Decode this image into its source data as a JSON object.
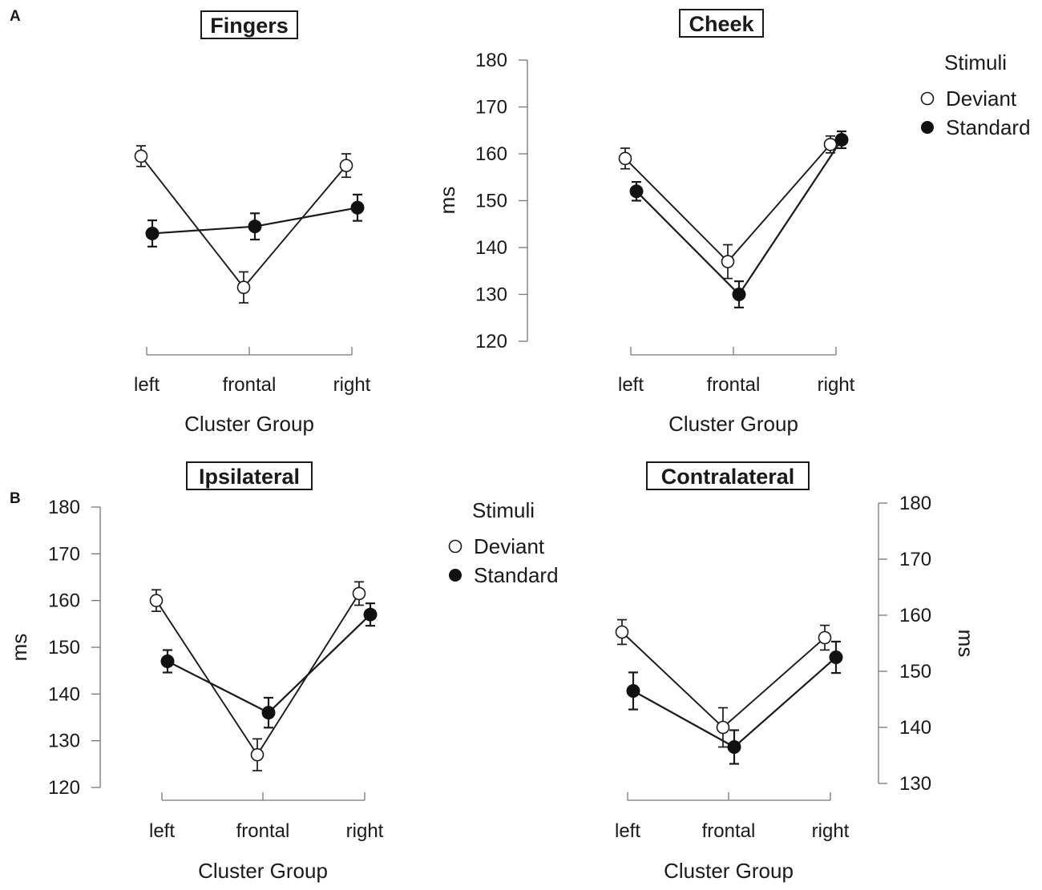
{
  "figure": {
    "panel_labels": [
      "A",
      "B"
    ],
    "legend_title": "Stimuli",
    "legend_entries": [
      "Deviant",
      "Standard"
    ]
  },
  "chart_data": [
    {
      "type": "line",
      "title": "Fingers",
      "categories": [
        "left",
        "frontal",
        "right"
      ],
      "xlabel": "Cluster Group",
      "ylabel": "",
      "ylim": [
        120,
        180
      ],
      "yticks": [],
      "series": [
        {
          "name": "Deviant",
          "marker": "open-circle",
          "values": [
            159.5,
            131.5,
            157.5
          ],
          "errors": [
            2.2,
            3.3,
            2.5
          ]
        },
        {
          "name": "Standard",
          "marker": "filled-circle",
          "values": [
            143,
            144.5,
            148.5
          ],
          "errors": [
            2.8,
            2.8,
            2.8
          ]
        }
      ]
    },
    {
      "type": "line",
      "title": "Cheek",
      "categories": [
        "left",
        "frontal",
        "right"
      ],
      "xlabel": "Cluster Group",
      "ylabel": "ms",
      "ylim": [
        120,
        180
      ],
      "yticks": [
        "180",
        "170",
        "160",
        "150",
        "140",
        "130",
        "120"
      ],
      "series": [
        {
          "name": "Deviant",
          "marker": "open-circle",
          "values": [
            159,
            137,
            162
          ],
          "errors": [
            2.2,
            3.6,
            1.8
          ]
        },
        {
          "name": "Standard",
          "marker": "filled-circle",
          "values": [
            152,
            130,
            163
          ],
          "errors": [
            2.0,
            2.8,
            1.8
          ]
        }
      ]
    },
    {
      "type": "line",
      "title": "Ipsilateral",
      "categories": [
        "left",
        "frontal",
        "right"
      ],
      "xlabel": "Cluster Group",
      "ylabel": "ms",
      "ylim": [
        120,
        180
      ],
      "yticks": [
        "180",
        "170",
        "160",
        "150",
        "140",
        "130",
        "120"
      ],
      "series": [
        {
          "name": "Deviant",
          "marker": "open-circle",
          "values": [
            160,
            127,
            161.5
          ],
          "errors": [
            2.3,
            3.4,
            2.5
          ]
        },
        {
          "name": "Standard",
          "marker": "filled-circle",
          "values": [
            147,
            136,
            157
          ],
          "errors": [
            2.4,
            3.2,
            2.4
          ]
        }
      ]
    },
    {
      "type": "line",
      "title": "Contralateral",
      "categories": [
        "left",
        "frontal",
        "right"
      ],
      "xlabel": "Cluster Group",
      "ylabel": "ms",
      "ylim": [
        130,
        180
      ],
      "yticks": [
        "180",
        "170",
        "160",
        "150",
        "140",
        "130"
      ],
      "series": [
        {
          "name": "Deviant",
          "marker": "open-circle",
          "values": [
            157,
            140,
            156
          ],
          "errors": [
            2.2,
            3.5,
            2.2
          ]
        },
        {
          "name": "Standard",
          "marker": "filled-circle",
          "values": [
            146.5,
            136.5,
            152.5
          ],
          "errors": [
            3.3,
            3.0,
            2.8
          ]
        }
      ]
    }
  ]
}
